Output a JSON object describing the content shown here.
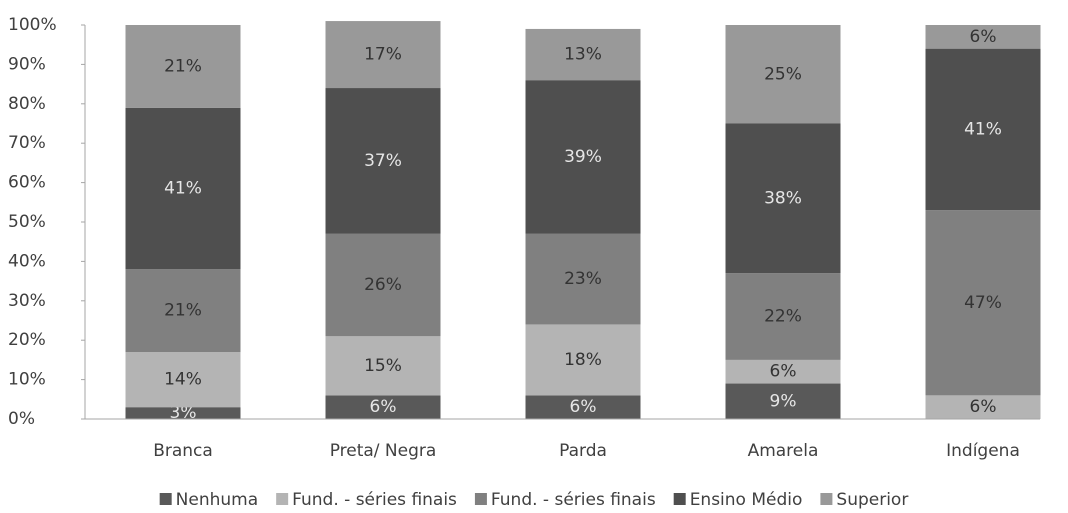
{
  "chart_data": {
    "type": "stacked_bar",
    "categories": [
      "Branca",
      "Preta/ Negra",
      "Parda",
      "Amarela",
      "Indígena"
    ],
    "series": [
      {
        "name": "Nenhuma",
        "color": "#595959",
        "values": [
          3,
          6,
          6,
          9,
          0
        ],
        "value_labels": [
          "3%",
          "6%",
          "6%",
          "9%",
          null
        ]
      },
      {
        "name": "Fund. - séries finais",
        "color": "#b4b4b4",
        "values": [
          14,
          15,
          18,
          6,
          6
        ],
        "value_labels": [
          "14%",
          "15%",
          "18%",
          "6%",
          "6%"
        ]
      },
      {
        "name": "Fund. - séries finais",
        "color": "#808080",
        "values": [
          21,
          26,
          23,
          22,
          47
        ],
        "value_labels": [
          "21%",
          "26%",
          "23%",
          "22%",
          "47%"
        ]
      },
      {
        "name": "Ensino Médio",
        "color": "#4f4f4f",
        "values": [
          41,
          37,
          39,
          38,
          41
        ],
        "value_labels": [
          "41%",
          "37%",
          "39%",
          "38%",
          "41%"
        ]
      },
      {
        "name": "Superior",
        "color": "#999999",
        "values": [
          21,
          17,
          13,
          25,
          6
        ],
        "value_labels": [
          "21%",
          "17%",
          "13%",
          "25%",
          "6%"
        ]
      }
    ],
    "ylim": [
      0,
      100
    ],
    "yticks": [
      {
        "value": 0,
        "label": "0%"
      },
      {
        "value": 10,
        "label": "10%"
      },
      {
        "value": 20,
        "label": "20%"
      },
      {
        "value": 30,
        "label": "30%"
      },
      {
        "value": 40,
        "label": "40%"
      },
      {
        "value": 50,
        "label": "50%"
      },
      {
        "value": 60,
        "label": "60%"
      },
      {
        "value": 70,
        "label": "70%"
      },
      {
        "value": 80,
        "label": "80%"
      },
      {
        "value": 90,
        "label": "90%"
      },
      {
        "value": 100,
        "label": "100%"
      }
    ],
    "grid": false,
    "legend": "bottom"
  }
}
